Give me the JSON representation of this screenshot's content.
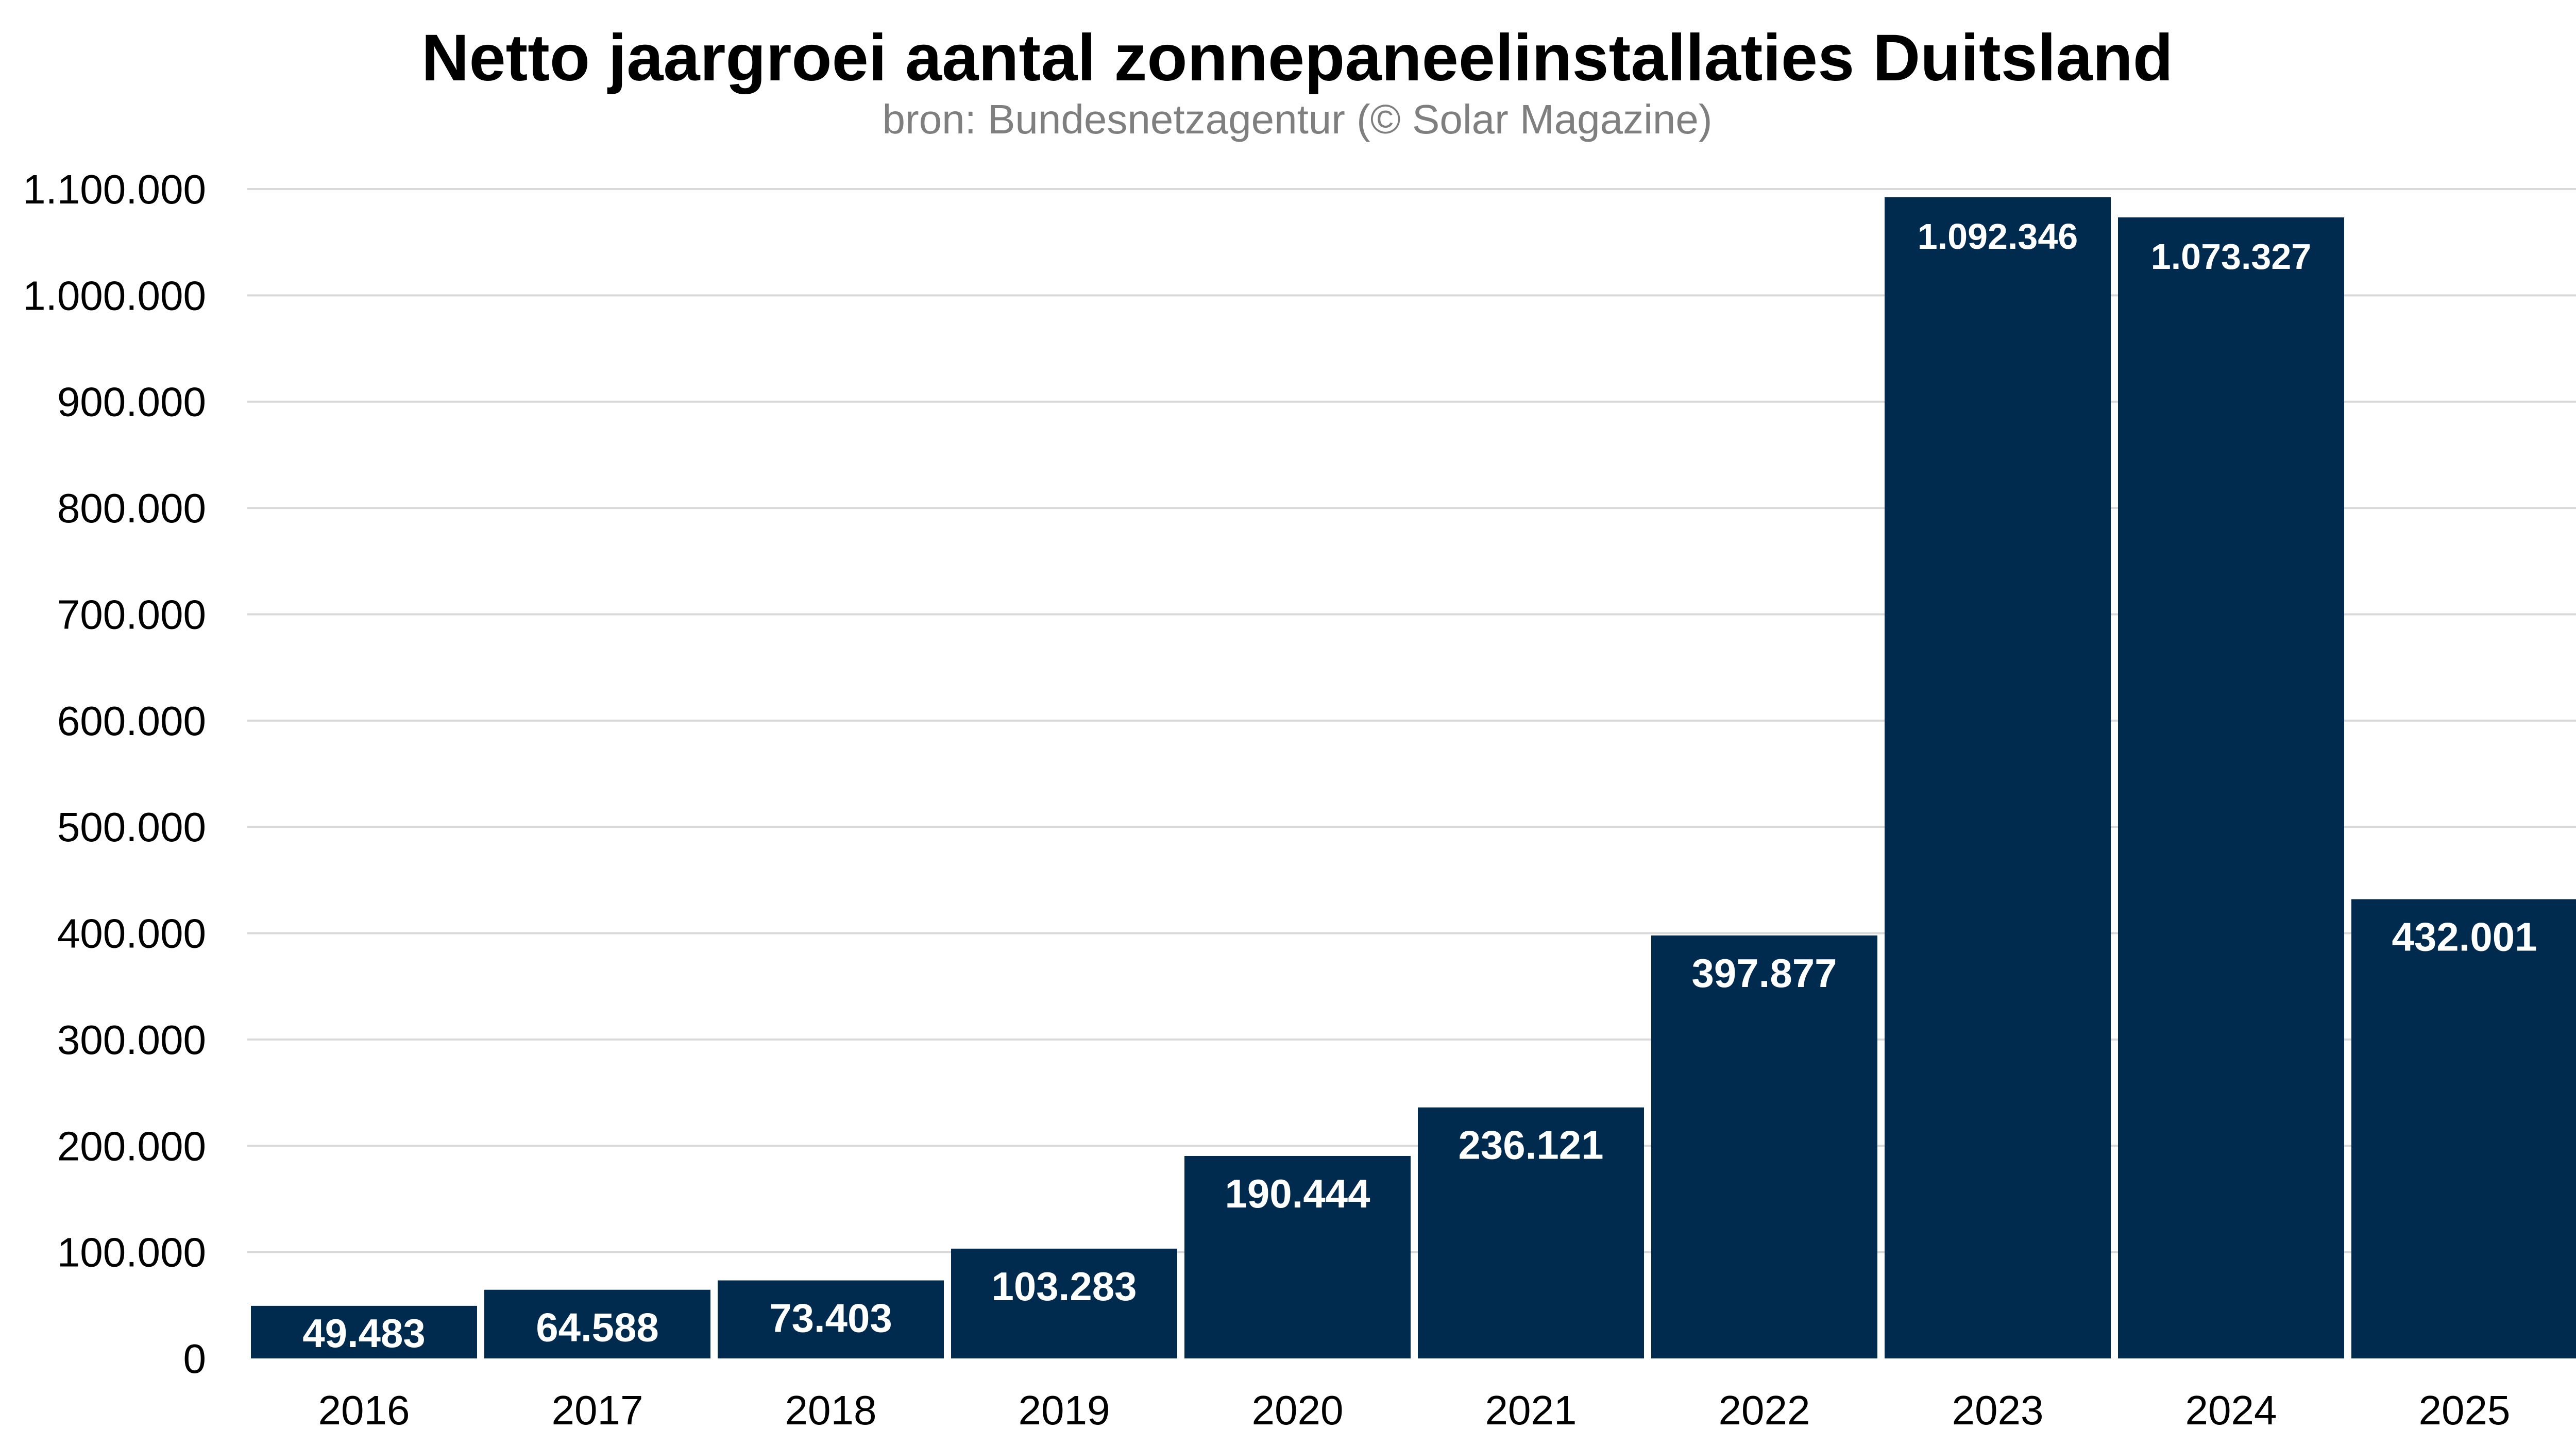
{
  "chart_data": {
    "type": "bar",
    "title": "Netto jaargroei aantal zonnepaneelinstallaties Duitsland",
    "subtitle": "bron: Bundesnetzagentur (© Solar Magazine)",
    "categories": [
      "2016",
      "2017",
      "2018",
      "2019",
      "2020",
      "2021",
      "2022",
      "2023",
      "2024",
      "2025"
    ],
    "values": [
      49483,
      64588,
      73403,
      103283,
      190444,
      236121,
      397877,
      1092346,
      1073327,
      432001
    ],
    "value_labels": [
      "49.483",
      "64.588",
      "73.403",
      "103.283",
      "190.444",
      "236.121",
      "397.877",
      "1.092.346",
      "1.073.327",
      "432.001"
    ],
    "yticks": [
      0,
      100000,
      200000,
      300000,
      400000,
      500000,
      600000,
      700000,
      800000,
      900000,
      1000000,
      1100000
    ],
    "ytick_labels": [
      "0",
      "100.000",
      "200.000",
      "300.000",
      "400.000",
      "500.000",
      "600.000",
      "700.000",
      "800.000",
      "900.000",
      "1.000.000",
      "1.100.000"
    ],
    "ylim": [
      0,
      1100000
    ],
    "xlabel": "",
    "ylabel": "",
    "grid": true,
    "legend": "none",
    "colors": {
      "bar": "#002b4f",
      "grid": "#d9d9d9",
      "title": "#000000",
      "subtitle": "#7f7f7f",
      "bar_label": "#ffffff"
    }
  }
}
